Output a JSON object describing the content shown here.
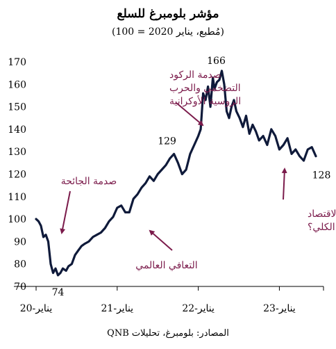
{
  "title": "مؤشر بلومبرغ للسلع",
  "subtitle": "(مُطبع، يناير 2020 = 100)",
  "source": "المصادر: بلومبرغ، تحليلات QNB",
  "colors": {
    "line": "#0f1a3a",
    "annotation": "#7b1b4b",
    "axis": "#000000"
  },
  "chart_data": {
    "type": "line",
    "ylim": [
      70,
      170
    ],
    "yticks": [
      70,
      80,
      90,
      100,
      110,
      120,
      130,
      140,
      150,
      160,
      170
    ],
    "x_range": [
      2020.0,
      2023.45
    ],
    "xticks": [
      {
        "x": 2020.0,
        "label": "يناير-20"
      },
      {
        "x": 2021.0,
        "label": "يناير-21"
      },
      {
        "x": 2022.0,
        "label": "يناير-22"
      },
      {
        "x": 2023.0,
        "label": "يناير-23"
      }
    ],
    "series": [
      {
        "x": [
          2020.0,
          2020.03,
          2020.06,
          2020.09,
          2020.12,
          2020.15,
          2020.18,
          2020.21,
          2020.24,
          2020.27,
          2020.3,
          2020.33,
          2020.37,
          2020.4,
          2020.44,
          2020.48,
          2020.52,
          2020.56,
          2020.6,
          2020.65,
          2020.7,
          2020.75,
          2020.8,
          2020.85,
          2020.9,
          2020.95,
          2021.0,
          2021.05,
          2021.1,
          2021.15,
          2021.2,
          2021.25,
          2021.3,
          2021.35,
          2021.4,
          2021.45,
          2021.5,
          2021.55,
          2021.6,
          2021.65,
          2021.7,
          2021.75,
          2021.8,
          2021.85,
          2021.9,
          2021.95,
          2022.0,
          2022.03,
          2022.06,
          2022.09,
          2022.12,
          2022.15,
          2022.18,
          2022.2,
          2022.23,
          2022.26,
          2022.29,
          2022.32,
          2022.35,
          2022.38,
          2022.41,
          2022.44,
          2022.47,
          2022.51,
          2022.55,
          2022.59,
          2022.63,
          2022.67,
          2022.71,
          2022.75,
          2022.8,
          2022.85,
          2022.9,
          2022.95,
          2023.0,
          2023.05,
          2023.1,
          2023.15,
          2023.2,
          2023.25,
          2023.3,
          2023.35,
          2023.4,
          2023.45
        ],
        "values": [
          100,
          99,
          97,
          92,
          93,
          90,
          80,
          76,
          78,
          75,
          76,
          78,
          77,
          79,
          80,
          84,
          86,
          88,
          89,
          90,
          92,
          93,
          94,
          96,
          99,
          101,
          105,
          106,
          103,
          103,
          109,
          111,
          114,
          116,
          119,
          117,
          120,
          122,
          124,
          127,
          129,
          125,
          120,
          122,
          129,
          133,
          137,
          140,
          156,
          153,
          159,
          150,
          163,
          158,
          161,
          162,
          166,
          160,
          148,
          145,
          150,
          153,
          148,
          145,
          141,
          146,
          138,
          142,
          139,
          135,
          137,
          133,
          140,
          137,
          131,
          133,
          136,
          129,
          131,
          128,
          126,
          131,
          132,
          128
        ]
      }
    ],
    "data_labels": [
      {
        "x": 2020.27,
        "value": 74,
        "text": "74"
      },
      {
        "x": 2021.7,
        "value": 129,
        "text": "129"
      },
      {
        "x": 2022.29,
        "value": 166,
        "text": "166"
      },
      {
        "x": 2023.45,
        "value": 128,
        "text": "128"
      }
    ],
    "annotations": [
      {
        "name": "covid-shock",
        "lines": [
          "صدمة الجائحة"
        ]
      },
      {
        "name": "recovery",
        "lines": [
          "التعافي العالمي"
        ]
      },
      {
        "name": "stagflation-war-shock",
        "lines": [
          "صدمة الركود",
          "التضخمي والحرب",
          "الروسية الأوكرانية"
        ]
      },
      {
        "name": "macro-stability",
        "lines": [
          "استقرار الاقتصاد",
          "الكلي؟"
        ]
      }
    ]
  }
}
